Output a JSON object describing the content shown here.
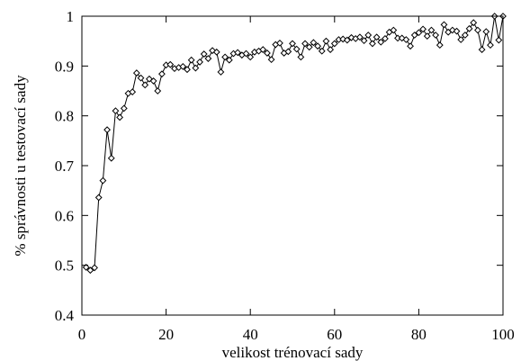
{
  "chart_data": {
    "type": "line",
    "title": "",
    "xlabel": "velikost trénovací sady",
    "ylabel": "% správnosti u testovací sady",
    "xlim": [
      0,
      100
    ],
    "ylim": [
      0.4,
      1.0
    ],
    "xticks": [
      0,
      20,
      40,
      60,
      80,
      100
    ],
    "xtick_labels": [
      "0",
      "20",
      "40",
      "60",
      "80",
      "100"
    ],
    "yticks": [
      0.4,
      0.5,
      0.6,
      0.7,
      0.8,
      0.9,
      1.0
    ],
    "ytick_labels": [
      "0.4",
      "0.5",
      "0.6",
      "0.7",
      "0.8",
      "0.9",
      "1"
    ],
    "grid": false,
    "legend": false,
    "marker": "diamond",
    "line_color": "#000000",
    "series": [
      {
        "x": [
          1,
          2,
          3,
          4,
          5,
          6,
          7,
          8,
          9,
          10,
          11,
          12,
          13,
          14,
          15,
          16,
          17,
          18,
          19,
          20,
          21,
          22,
          23,
          24,
          25,
          26,
          27,
          28,
          29,
          30,
          31,
          32,
          33,
          34,
          35,
          36,
          37,
          38,
          39,
          40,
          41,
          42,
          43,
          44,
          45,
          46,
          47,
          48,
          49,
          50,
          51,
          52,
          53,
          54,
          55,
          56,
          57,
          58,
          59,
          60,
          61,
          62,
          63,
          64,
          65,
          66,
          67,
          68,
          69,
          70,
          71,
          72,
          73,
          74,
          75,
          76,
          77,
          78,
          79,
          80,
          81,
          82,
          83,
          84,
          85,
          86,
          87,
          88,
          89,
          90,
          91,
          92,
          93,
          94,
          95,
          96,
          97,
          98,
          99,
          100
        ],
        "y": [
          0.496,
          0.49,
          0.495,
          0.636,
          0.67,
          0.772,
          0.715,
          0.81,
          0.797,
          0.815,
          0.845,
          0.848,
          0.886,
          0.876,
          0.862,
          0.874,
          0.87,
          0.85,
          0.884,
          0.902,
          0.903,
          0.895,
          0.897,
          0.899,
          0.893,
          0.912,
          0.896,
          0.908,
          0.924,
          0.915,
          0.931,
          0.928,
          0.888,
          0.918,
          0.912,
          0.925,
          0.927,
          0.922,
          0.925,
          0.918,
          0.928,
          0.93,
          0.933,
          0.926,
          0.913,
          0.943,
          0.946,
          0.926,
          0.929,
          0.945,
          0.934,
          0.918,
          0.945,
          0.938,
          0.947,
          0.94,
          0.93,
          0.95,
          0.933,
          0.945,
          0.953,
          0.954,
          0.952,
          0.957,
          0.955,
          0.958,
          0.951,
          0.962,
          0.945,
          0.958,
          0.948,
          0.955,
          0.968,
          0.972,
          0.956,
          0.956,
          0.953,
          0.94,
          0.962,
          0.967,
          0.974,
          0.96,
          0.972,
          0.962,
          0.942,
          0.983,
          0.968,
          0.972,
          0.97,
          0.953,
          0.962,
          0.975,
          0.987,
          0.972,
          0.933,
          0.969,
          0.942,
          1.0,
          0.952,
          1.0
        ]
      }
    ]
  }
}
